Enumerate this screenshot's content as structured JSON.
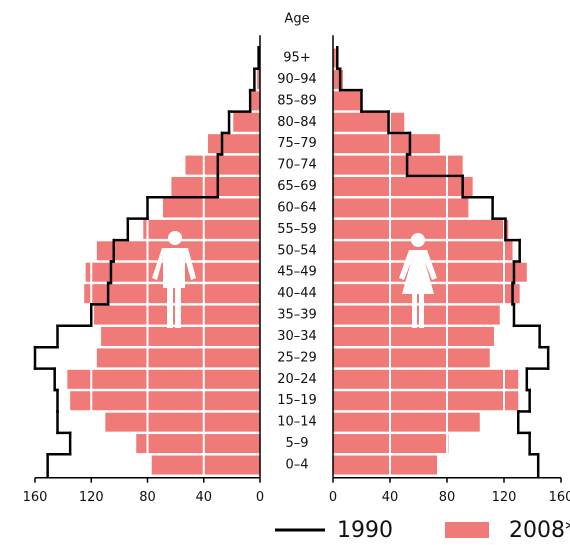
{
  "chart_data": {
    "type": "pyramid",
    "title": "Age",
    "categories": [
      "0–4",
      "5–9",
      "10–14",
      "15–19",
      "20–24",
      "25–29",
      "30–34",
      "35–39",
      "40–44",
      "45–49",
      "50–54",
      "55–59",
      "60–64",
      "65–69",
      "70–74",
      "75–79",
      "80–84",
      "85–89",
      "90–94",
      "95+"
    ],
    "series": [
      {
        "name": "1990",
        "color": "#000000",
        "style": "step",
        "left": [
          151,
          135,
          144,
          144,
          146,
          160,
          144,
          120,
          108,
          106,
          104,
          94,
          80,
          30,
          30,
          27,
          22,
          7,
          4,
          1
        ],
        "right": [
          144,
          138,
          130,
          138,
          136,
          151,
          145,
          127,
          126,
          127,
          131,
          121,
          112,
          91,
          52,
          54,
          39,
          20,
          5,
          3
        ]
      },
      {
        "name": "2008*",
        "color": "#f07a77",
        "style": "bar",
        "left": [
          77,
          88,
          110,
          135,
          137,
          116,
          113,
          118,
          125,
          124,
          116,
          83,
          69,
          63,
          53,
          37,
          19,
          6,
          2,
          1
        ],
        "right": [
          73,
          81,
          103,
          130,
          130,
          110,
          113,
          117,
          131,
          136,
          126,
          123,
          95,
          98,
          91,
          75,
          50,
          20,
          7,
          2
        ]
      }
    ],
    "xlim": [
      0,
      160
    ],
    "xticks": [
      0,
      40,
      80,
      120,
      160
    ],
    "grid": true
  }
}
